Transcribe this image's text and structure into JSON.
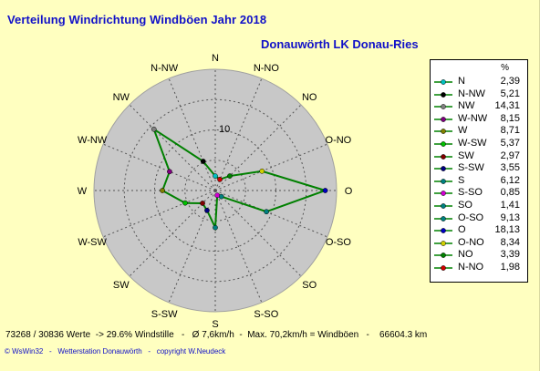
{
  "header": {
    "title": "Verteilung Windrichtung Windböen  Jahr 2018",
    "subtitle": "Donauwörth LK Donau-Ries"
  },
  "chart_data": {
    "type": "radar",
    "axis_label": "10",
    "rmax": 20,
    "directions": [
      "N",
      "N-NO",
      "NO",
      "O-NO",
      "O",
      "O-SO",
      "SO",
      "S-SO",
      "S",
      "S-SW",
      "SW",
      "W-SW",
      "W",
      "W-NW",
      "NW",
      "N-NW"
    ],
    "values": [
      2.39,
      1.98,
      3.39,
      8.34,
      18.13,
      9.13,
      1.41,
      0.85,
      6.12,
      3.55,
      2.97,
      5.37,
      8.71,
      8.15,
      14.31,
      5.21
    ],
    "colors": [
      "#00c0c0",
      "#d00000",
      "#008000",
      "#d0d000",
      "#0000c0",
      "#008080",
      "#008080",
      "#d000d0",
      "#008080",
      "#000080",
      "#800000",
      "#00c000",
      "#808000",
      "#800080",
      "#808080",
      "#000000"
    ]
  },
  "legend": {
    "header": "%",
    "items": [
      {
        "name": "N",
        "value": "2,39",
        "color": "#00c0c0"
      },
      {
        "name": "N-NW",
        "value": "5,21",
        "color": "#000000"
      },
      {
        "name": "NW",
        "value": "14,31",
        "color": "#808080"
      },
      {
        "name": "W-NW",
        "value": "8,15",
        "color": "#800080"
      },
      {
        "name": "W",
        "value": "8,71",
        "color": "#808000"
      },
      {
        "name": "W-SW",
        "value": "5,37",
        "color": "#00c000"
      },
      {
        "name": "SW",
        "value": "2,97",
        "color": "#800000"
      },
      {
        "name": "S-SW",
        "value": "3,55",
        "color": "#000080"
      },
      {
        "name": "S",
        "value": "6,12",
        "color": "#008080"
      },
      {
        "name": "S-SO",
        "value": "0,85",
        "color": "#d000d0"
      },
      {
        "name": "SO",
        "value": "1,41",
        "color": "#008080"
      },
      {
        "name": "O-SO",
        "value": "9,13",
        "color": "#008080"
      },
      {
        "name": "O",
        "value": "18,13",
        "color": "#0000c0"
      },
      {
        "name": "O-NO",
        "value": "8,34",
        "color": "#d0d000"
      },
      {
        "name": "NO",
        "value": "3,39",
        "color": "#008000"
      },
      {
        "name": "N-NO",
        "value": "1,98",
        "color": "#d00000"
      }
    ]
  },
  "footer": {
    "stats": "73268 / 30836 Werte  -> 29.6% Windstille   -   Ø 7,6km/h  -  Max. 70,2km/h = Windböen   -    66604.3 km",
    "credit": "© WsWin32   -   Wetterstation Donauwörth   -   copyright W.Neudeck"
  }
}
